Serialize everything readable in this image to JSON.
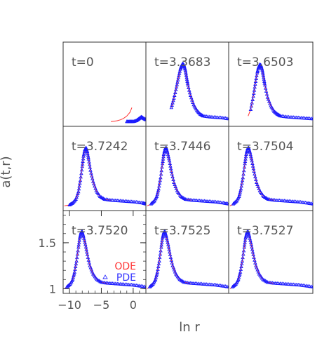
{
  "chart_data": {
    "type": "line",
    "figure": {
      "xlabel": "ln r",
      "ylabel": "a(t,r)",
      "xlim": [
        -11,
        2
      ],
      "ylim": [
        0.95,
        1.85
      ],
      "x_ticks": [
        -10,
        -5,
        0
      ],
      "x_tick_labels": [
        "−10",
        "−5",
        "0"
      ],
      "y_ticks": [
        1,
        1.5
      ],
      "y_tick_labels": [
        "1",
        "1.5"
      ],
      "legend": {
        "placement": "inside bottom-right of the bottom-left panel",
        "entries": [
          {
            "label": "ODE",
            "color": "#ff3333",
            "marker": "line"
          },
          {
            "label": "PDE",
            "color": "#3333ff",
            "marker": "triangle"
          }
        ]
      },
      "colors": {
        "ode": "#ff3333",
        "pde": "#1a1aff",
        "frame": "#333333",
        "label": "#555555"
      }
    },
    "panels": [
      {
        "t_label": "t=0",
        "series": [
          {
            "name": "ODE",
            "x": [
              -3.5,
              -3.0,
              -2.5,
              -2.0,
              -1.5,
              -1.0,
              -0.5,
              -0.2
            ],
            "y": [
              1.0,
              1.005,
              1.01,
              1.02,
              1.035,
              1.06,
              1.1,
              1.15
            ]
          },
          {
            "name": "PDE",
            "x": [
              -1.0,
              -0.5,
              0.0,
              0.5,
              0.9,
              1.3,
              1.6,
              2.0
            ],
            "y": [
              1.0,
              1.0,
              1.0,
              1.01,
              1.03,
              1.05,
              1.035,
              1.02
            ]
          }
        ]
      },
      {
        "t_label": "t=3.3683",
        "series": [
          {
            "name": "ODE",
            "x": [
              -7.0,
              -6.6,
              -6.2,
              -5.9,
              -5.6,
              -5.4,
              -5.2,
              -5.0,
              -4.8,
              -4.6,
              -4.4,
              -4.0,
              -3.5,
              -3.0,
              -2.5,
              -2.0
            ],
            "y": [
              1.15,
              1.25,
              1.37,
              1.47,
              1.56,
              1.6,
              1.62,
              1.6,
              1.55,
              1.47,
              1.39,
              1.28,
              1.18,
              1.12,
              1.08,
              1.06
            ]
          },
          {
            "name": "PDE",
            "x": [
              -7.0,
              -6.6,
              -6.2,
              -5.9,
              -5.6,
              -5.4,
              -5.2,
              -5.0,
              -4.8,
              -4.6,
              -4.4,
              -4.0,
              -3.5,
              -3.0,
              -2.5,
              -2.0,
              -1.0,
              0.0,
              1.0,
              2.0
            ],
            "y": [
              1.15,
              1.25,
              1.37,
              1.47,
              1.56,
              1.6,
              1.62,
              1.6,
              1.55,
              1.47,
              1.39,
              1.28,
              1.18,
              1.12,
              1.08,
              1.06,
              1.05,
              1.045,
              1.04,
              1.03
            ]
          }
        ]
      },
      {
        "t_label": "t=3.6503",
        "series": [
          {
            "name": "ODE",
            "x": [
              -8.0,
              -7.6,
              -7.2,
              -6.9,
              -6.6,
              -6.4,
              -6.2,
              -6.0,
              -5.8,
              -5.6,
              -5.4,
              -5.0,
              -4.5,
              -4.0,
              -3.5,
              -3.0
            ],
            "y": [
              1.06,
              1.13,
              1.27,
              1.4,
              1.52,
              1.58,
              1.61,
              1.6,
              1.55,
              1.47,
              1.39,
              1.26,
              1.17,
              1.11,
              1.08,
              1.06
            ]
          },
          {
            "name": "PDE",
            "x": [
              -7.6,
              -7.2,
              -6.9,
              -6.6,
              -6.4,
              -6.2,
              -6.0,
              -5.8,
              -5.6,
              -5.4,
              -5.0,
              -4.5,
              -4.0,
              -3.5,
              -3.0,
              -2.0,
              -1.0,
              0.0,
              1.0,
              2.0
            ],
            "y": [
              1.13,
              1.27,
              1.4,
              1.52,
              1.58,
              1.61,
              1.6,
              1.55,
              1.47,
              1.39,
              1.26,
              1.17,
              1.11,
              1.08,
              1.06,
              1.05,
              1.045,
              1.04,
              1.035,
              1.03
            ]
          }
        ]
      },
      {
        "t_label": "t=3.7242",
        "series": [
          {
            "name": "ODE",
            "x": [
              -10.8,
              -10.0,
              -9.5,
              -9.0,
              -8.6,
              -8.3,
              -8.0,
              -7.8,
              -7.6,
              -7.4,
              -7.2,
              -7.0,
              -6.7,
              -6.3,
              -5.8,
              -5.2,
              -4.5,
              -3.5
            ],
            "y": [
              1.0,
              1.01,
              1.03,
              1.07,
              1.15,
              1.27,
              1.42,
              1.53,
              1.6,
              1.62,
              1.58,
              1.5,
              1.38,
              1.26,
              1.16,
              1.1,
              1.07,
              1.06
            ]
          },
          {
            "name": "PDE",
            "x": [
              -10.0,
              -9.5,
              -9.0,
              -8.6,
              -8.3,
              -8.0,
              -7.8,
              -7.6,
              -7.4,
              -7.2,
              -7.0,
              -6.7,
              -6.3,
              -5.8,
              -5.2,
              -4.5,
              -3.5,
              -2.5,
              -1.5,
              -0.5,
              0.5,
              1.5,
              2.0
            ],
            "y": [
              1.01,
              1.03,
              1.07,
              1.15,
              1.27,
              1.42,
              1.53,
              1.6,
              1.62,
              1.58,
              1.5,
              1.38,
              1.26,
              1.16,
              1.1,
              1.07,
              1.06,
              1.055,
              1.05,
              1.045,
              1.04,
              1.03,
              1.02
            ]
          }
        ]
      },
      {
        "t_label": "t=3.7446",
        "series": [
          {
            "name": "ODE",
            "x": [
              -10.8,
              -10.2,
              -9.7,
              -9.3,
              -9.0,
              -8.7,
              -8.4,
              -8.2,
              -8.0,
              -7.8,
              -7.6,
              -7.3,
              -7.0,
              -6.6,
              -6.1,
              -5.5,
              -4.8,
              -3.8
            ],
            "y": [
              1.0,
              1.02,
              1.05,
              1.1,
              1.18,
              1.3,
              1.45,
              1.55,
              1.61,
              1.62,
              1.57,
              1.48,
              1.37,
              1.25,
              1.16,
              1.1,
              1.07,
              1.06
            ]
          },
          {
            "name": "PDE",
            "x": [
              -10.2,
              -9.7,
              -9.3,
              -9.0,
              -8.7,
              -8.4,
              -8.2,
              -8.0,
              -7.8,
              -7.6,
              -7.3,
              -7.0,
              -6.6,
              -6.1,
              -5.5,
              -4.8,
              -3.8,
              -2.8,
              -1.8,
              -0.8,
              0.2,
              1.2,
              2.0
            ],
            "y": [
              1.02,
              1.05,
              1.1,
              1.18,
              1.3,
              1.45,
              1.55,
              1.61,
              1.62,
              1.57,
              1.48,
              1.37,
              1.25,
              1.16,
              1.1,
              1.07,
              1.06,
              1.055,
              1.05,
              1.045,
              1.04,
              1.03,
              1.02
            ]
          }
        ]
      },
      {
        "t_label": "t=3.7504",
        "series": [
          {
            "name": "ODE",
            "x": [
              -10.8,
              -10.3,
              -9.8,
              -9.4,
              -9.1,
              -8.8,
              -8.5,
              -8.3,
              -8.1,
              -7.9,
              -7.7,
              -7.4,
              -7.1,
              -6.7,
              -6.2,
              -5.6,
              -4.9,
              -3.9
            ],
            "y": [
              1.0,
              1.02,
              1.05,
              1.1,
              1.18,
              1.3,
              1.45,
              1.55,
              1.61,
              1.62,
              1.57,
              1.48,
              1.37,
              1.25,
              1.16,
              1.1,
              1.07,
              1.06
            ]
          },
          {
            "name": "PDE",
            "x": [
              -10.3,
              -9.8,
              -9.4,
              -9.1,
              -8.8,
              -8.5,
              -8.3,
              -8.1,
              -7.9,
              -7.7,
              -7.4,
              -7.1,
              -6.7,
              -6.2,
              -5.6,
              -4.9,
              -3.9,
              -2.9,
              -1.9,
              -0.9,
              0.1,
              1.1,
              2.0
            ],
            "y": [
              1.02,
              1.05,
              1.1,
              1.18,
              1.3,
              1.45,
              1.55,
              1.61,
              1.62,
              1.57,
              1.48,
              1.37,
              1.25,
              1.16,
              1.1,
              1.07,
              1.06,
              1.055,
              1.05,
              1.045,
              1.04,
              1.03,
              1.02
            ]
          }
        ]
      },
      {
        "t_label": "t=3.7520",
        "series": [
          {
            "name": "ODE",
            "x": [
              -10.8,
              -10.4,
              -9.9,
              -9.5,
              -9.2,
              -8.9,
              -8.6,
              -8.4,
              -8.2,
              -8.0,
              -7.8,
              -7.5,
              -7.2,
              -6.8,
              -6.3,
              -5.7,
              -5.0,
              -4.0
            ],
            "y": [
              1.0,
              1.02,
              1.05,
              1.1,
              1.18,
              1.3,
              1.45,
              1.55,
              1.61,
              1.62,
              1.57,
              1.48,
              1.37,
              1.25,
              1.16,
              1.1,
              1.07,
              1.06
            ]
          },
          {
            "name": "PDE",
            "x": [
              -10.4,
              -9.9,
              -9.5,
              -9.2,
              -8.9,
              -8.6,
              -8.4,
              -8.2,
              -8.0,
              -7.8,
              -7.5,
              -7.2,
              -6.8,
              -6.3,
              -5.7,
              -5.0,
              -4.0,
              -3.0,
              -2.0,
              -1.0,
              0.0,
              1.0,
              2.0
            ],
            "y": [
              1.02,
              1.05,
              1.1,
              1.18,
              1.3,
              1.45,
              1.55,
              1.61,
              1.62,
              1.57,
              1.48,
              1.37,
              1.25,
              1.16,
              1.1,
              1.07,
              1.06,
              1.055,
              1.05,
              1.045,
              1.04,
              1.03,
              1.02
            ]
          }
        ]
      },
      {
        "t_label": "t=3.7525",
        "series": [
          {
            "name": "ODE",
            "x": [
              -10.8,
              -10.4,
              -9.9,
              -9.5,
              -9.2,
              -8.9,
              -8.6,
              -8.4,
              -8.2,
              -8.0,
              -7.8,
              -7.5,
              -7.2,
              -6.8,
              -6.3,
              -5.7,
              -5.0,
              -4.0
            ],
            "y": [
              1.0,
              1.02,
              1.05,
              1.1,
              1.18,
              1.3,
              1.45,
              1.55,
              1.61,
              1.62,
              1.57,
              1.48,
              1.37,
              1.25,
              1.16,
              1.1,
              1.07,
              1.06
            ]
          },
          {
            "name": "PDE",
            "x": [
              -10.4,
              -9.9,
              -9.5,
              -9.2,
              -8.9,
              -8.6,
              -8.4,
              -8.2,
              -8.0,
              -7.8,
              -7.5,
              -7.2,
              -6.8,
              -6.3,
              -5.7,
              -5.0,
              -4.0,
              -3.0,
              -2.0,
              -1.0,
              0.0,
              1.0,
              2.0
            ],
            "y": [
              1.02,
              1.05,
              1.1,
              1.18,
              1.3,
              1.45,
              1.55,
              1.61,
              1.62,
              1.57,
              1.48,
              1.37,
              1.25,
              1.16,
              1.1,
              1.07,
              1.06,
              1.055,
              1.05,
              1.045,
              1.04,
              1.03,
              1.02
            ]
          }
        ]
      },
      {
        "t_label": "t=3.7527",
        "series": [
          {
            "name": "ODE",
            "x": [
              -10.8,
              -10.4,
              -9.9,
              -9.5,
              -9.2,
              -8.9,
              -8.6,
              -8.4,
              -8.2,
              -8.0,
              -7.8,
              -7.5,
              -7.2,
              -6.8,
              -6.3,
              -5.7,
              -5.0,
              -4.0
            ],
            "y": [
              1.0,
              1.02,
              1.05,
              1.1,
              1.18,
              1.3,
              1.45,
              1.55,
              1.61,
              1.62,
              1.57,
              1.48,
              1.37,
              1.25,
              1.16,
              1.1,
              1.07,
              1.06
            ]
          },
          {
            "name": "PDE",
            "x": [
              -10.4,
              -9.9,
              -9.5,
              -9.2,
              -8.9,
              -8.6,
              -8.4,
              -8.2,
              -8.0,
              -7.8,
              -7.5,
              -7.2,
              -6.8,
              -6.3,
              -5.7,
              -5.0,
              -4.0,
              -3.0,
              -2.0,
              -1.0,
              0.0,
              1.0,
              2.0
            ],
            "y": [
              1.02,
              1.05,
              1.1,
              1.18,
              1.3,
              1.45,
              1.55,
              1.61,
              1.62,
              1.57,
              1.48,
              1.37,
              1.25,
              1.16,
              1.1,
              1.07,
              1.06,
              1.055,
              1.05,
              1.045,
              1.04,
              1.03,
              1.02
            ]
          }
        ]
      }
    ]
  }
}
